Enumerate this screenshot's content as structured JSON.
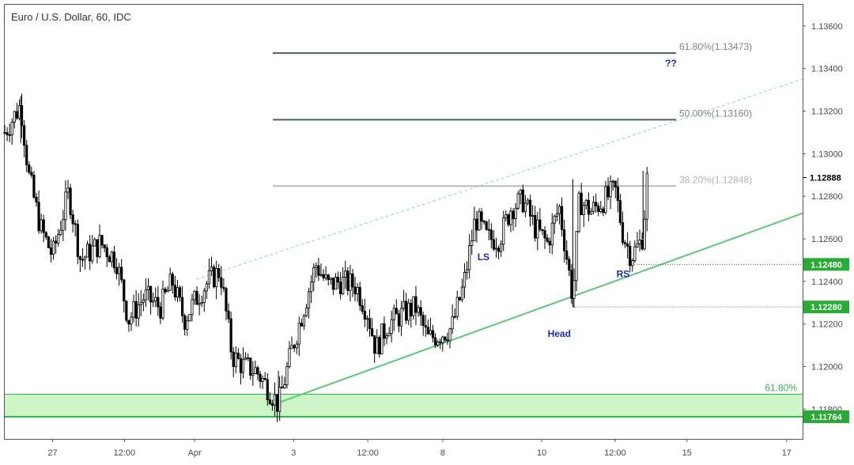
{
  "chart_data": {
    "type": "candlestick",
    "title": "Euro / U.S. Dollar, 60, IDC",
    "ylim": [
      1.1166,
      1.137
    ],
    "y_ticks": [
      {
        "value": 1.136,
        "label": "1.13600"
      },
      {
        "value": 1.134,
        "label": "1.13400"
      },
      {
        "value": 1.132,
        "label": "1.13200"
      },
      {
        "value": 1.13,
        "label": "1.13000"
      },
      {
        "value": 1.128,
        "label": "1.12800"
      },
      {
        "value": 1.126,
        "label": "1.12600"
      },
      {
        "value": 1.124,
        "label": "1.12400"
      },
      {
        "value": 1.122,
        "label": "1.12200"
      },
      {
        "value": 1.12,
        "label": "1.12000"
      },
      {
        "value": 1.118,
        "label": "1.11800"
      }
    ],
    "x_ticks": [
      {
        "label": "27",
        "pos": 0.06
      },
      {
        "label": "12:00",
        "pos": 0.15
      },
      {
        "label": "Apr",
        "pos": 0.238
      },
      {
        "label": "3",
        "pos": 0.362
      },
      {
        "label": "12:00",
        "pos": 0.455
      },
      {
        "label": "8",
        "pos": 0.549
      },
      {
        "label": "10",
        "pos": 0.673
      },
      {
        "label": "12:00",
        "pos": 0.765
      },
      {
        "label": "15",
        "pos": 0.855
      },
      {
        "label": "17",
        "pos": 0.98
      }
    ],
    "price_path": [
      [
        0.0,
        1.131
      ],
      [
        0.02,
        1.1323
      ],
      [
        0.03,
        1.129
      ],
      [
        0.045,
        1.1265
      ],
      [
        0.06,
        1.1252
      ],
      [
        0.08,
        1.1282
      ],
      [
        0.095,
        1.125
      ],
      [
        0.12,
        1.1258
      ],
      [
        0.14,
        1.125
      ],
      [
        0.155,
        1.1222
      ],
      [
        0.175,
        1.1233
      ],
      [
        0.195,
        1.1228
      ],
      [
        0.21,
        1.124
      ],
      [
        0.225,
        1.1222
      ],
      [
        0.24,
        1.1232
      ],
      [
        0.255,
        1.124
      ],
      [
        0.27,
        1.1245
      ],
      [
        0.285,
        1.1205
      ],
      [
        0.3,
        1.12
      ],
      [
        0.315,
        1.1198
      ],
      [
        0.33,
        1.119
      ],
      [
        0.343,
        1.1182
      ],
      [
        0.36,
        1.1208
      ],
      [
        0.375,
        1.1228
      ],
      [
        0.39,
        1.1248
      ],
      [
        0.405,
        1.1238
      ],
      [
        0.42,
        1.124
      ],
      [
        0.44,
        1.1238
      ],
      [
        0.455,
        1.1225
      ],
      [
        0.465,
        1.1208
      ],
      [
        0.48,
        1.122
      ],
      [
        0.5,
        1.1225
      ],
      [
        0.515,
        1.1228
      ],
      [
        0.53,
        1.1213
      ],
      [
        0.545,
        1.1215
      ],
      [
        0.56,
        1.1218
      ],
      [
        0.575,
        1.1238
      ],
      [
        0.59,
        1.127
      ],
      [
        0.605,
        1.126
      ],
      [
        0.62,
        1.126
      ],
      [
        0.635,
        1.1275
      ],
      [
        0.65,
        1.1278
      ],
      [
        0.665,
        1.1265
      ],
      [
        0.68,
        1.1258
      ],
      [
        0.695,
        1.1275
      ],
      [
        0.705,
        1.125
      ],
      [
        0.712,
        1.1232
      ],
      [
        0.72,
        1.1278
      ],
      [
        0.735,
        1.1273
      ],
      [
        0.75,
        1.1278
      ],
      [
        0.765,
        1.1283
      ],
      [
        0.775,
        1.1262
      ],
      [
        0.785,
        1.1252
      ],
      [
        0.795,
        1.1257
      ],
      [
        0.8,
        1.1262
      ],
      [
        0.805,
        1.1288
      ]
    ],
    "price_path_x_note": "",
    "horizontal_levels": [
      {
        "label": "61.80%(1.13473)",
        "value": 1.13473
      },
      {
        "label": "50.00%(1.13160)",
        "value": 1.1316
      },
      {
        "label": "38.20%(1.12848)",
        "value": 1.12848
      }
    ],
    "support_zone": {
      "label": "61.80%",
      "top": 1.1187,
      "bottom": 1.11764
    },
    "price_tags": [
      {
        "label": "1.12888",
        "value": 1.12888,
        "style": "current"
      },
      {
        "label": "1.12480",
        "value": 1.1248,
        "style": "green"
      },
      {
        "label": "1.12280",
        "value": 1.1228,
        "style": "green"
      },
      {
        "label": "1.11764",
        "value": 1.11764,
        "style": "green"
      }
    ],
    "annotations": [
      {
        "label": "??",
        "x": 0.835,
        "value": 1.1341
      },
      {
        "label": "LS",
        "x": 0.6,
        "value": 1.125
      },
      {
        "label": "Head",
        "x": 0.695,
        "value": 1.1214
      },
      {
        "label": "RS",
        "x": 0.775,
        "value": 1.1242
      }
    ],
    "trendlines": [
      {
        "name": "support",
        "from": [
          0.343,
          1.1183
        ],
        "to": [
          1.0,
          1.1272
        ]
      },
      {
        "name": "upper-dashed",
        "from": [
          0.24,
          1.1241
        ],
        "to": [
          1.0,
          1.1335
        ]
      }
    ],
    "neckline_guides": [
      {
        "from_x": 0.78,
        "value": 1.1248
      },
      {
        "from_x": 0.712,
        "value": 1.1228
      }
    ],
    "colors": {
      "candle": "#000000",
      "fib": "#4d5e66",
      "fib_light": "#b8bcc0",
      "support_line": "#5cc87a",
      "zone_fill": "#cdf5c8",
      "zone_border": "#2db84a",
      "tag_green": "#2aaa36",
      "tag_current": "#000000",
      "annotation": "#1a2fb0",
      "dashed": "#8fd3c8"
    }
  }
}
